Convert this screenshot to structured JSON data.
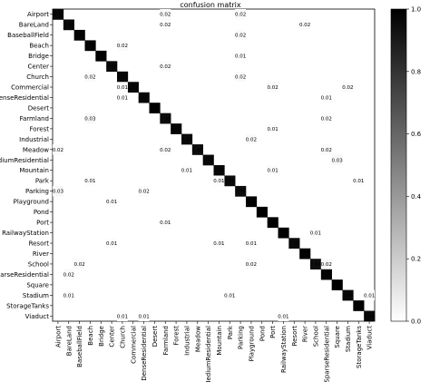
{
  "chart_data": {
    "type": "heatmap",
    "title": "confusion matrix",
    "xlabel": "",
    "ylabel": "",
    "labels": [
      "Airport",
      "BareLand",
      "BaseballField",
      "Beach",
      "Bridge",
      "Center",
      "Church",
      "Commercial",
      "DenseResidential",
      "Desert",
      "Farmland",
      "Forest",
      "Industrial",
      "Meadow",
      "MediumResidential",
      "Mountain",
      "Park",
      "Parking",
      "Playground",
      "Pond",
      "Port",
      "RailwayStation",
      "Resort",
      "River",
      "School",
      "SparseResidential",
      "Square",
      "Stadium",
      "StorageTanks",
      "Viaduct"
    ],
    "diagonal": [
      0.97,
      0.97,
      0.98,
      0.98,
      0.99,
      0.96,
      0.97,
      0.97,
      0.97,
      1.0,
      0.95,
      0.98,
      0.96,
      0.95,
      0.97,
      0.97,
      0.96,
      0.95,
      0.99,
      1.0,
      0.99,
      0.99,
      0.96,
      1.0,
      0.94,
      0.98,
      1.0,
      0.96,
      1.0,
      0.96
    ],
    "off_diagonal": [
      {
        "row": 0,
        "col": 10,
        "value": 0.02
      },
      {
        "row": 0,
        "col": 17,
        "value": 0.02
      },
      {
        "row": 1,
        "col": 10,
        "value": 0.02
      },
      {
        "row": 1,
        "col": 23,
        "value": 0.02
      },
      {
        "row": 2,
        "col": 17,
        "value": 0.02
      },
      {
        "row": 3,
        "col": 6,
        "value": 0.02
      },
      {
        "row": 4,
        "col": 17,
        "value": 0.01
      },
      {
        "row": 5,
        "col": 10,
        "value": 0.02
      },
      {
        "row": 6,
        "col": 3,
        "value": 0.02
      },
      {
        "row": 6,
        "col": 17,
        "value": 0.02
      },
      {
        "row": 7,
        "col": 6,
        "value": 0.01
      },
      {
        "row": 7,
        "col": 20,
        "value": 0.02
      },
      {
        "row": 7,
        "col": 27,
        "value": 0.02
      },
      {
        "row": 8,
        "col": 6,
        "value": 0.01
      },
      {
        "row": 8,
        "col": 25,
        "value": 0.01
      },
      {
        "row": 10,
        "col": 3,
        "value": 0.03
      },
      {
        "row": 10,
        "col": 25,
        "value": 0.02
      },
      {
        "row": 11,
        "col": 20,
        "value": 0.01
      },
      {
        "row": 12,
        "col": 18,
        "value": 0.02
      },
      {
        "row": 13,
        "col": 0,
        "value": 0.02
      },
      {
        "row": 13,
        "col": 10,
        "value": 0.02
      },
      {
        "row": 13,
        "col": 25,
        "value": 0.02
      },
      {
        "row": 14,
        "col": 26,
        "value": 0.03
      },
      {
        "row": 15,
        "col": 12,
        "value": 0.01
      },
      {
        "row": 15,
        "col": 20,
        "value": 0.01
      },
      {
        "row": 16,
        "col": 3,
        "value": 0.01
      },
      {
        "row": 16,
        "col": 15,
        "value": 0.01
      },
      {
        "row": 16,
        "col": 28,
        "value": 0.01
      },
      {
        "row": 17,
        "col": 0,
        "value": 0.03
      },
      {
        "row": 17,
        "col": 8,
        "value": 0.02
      },
      {
        "row": 18,
        "col": 5,
        "value": 0.01
      },
      {
        "row": 20,
        "col": 10,
        "value": 0.01
      },
      {
        "row": 21,
        "col": 24,
        "value": 0.01
      },
      {
        "row": 22,
        "col": 5,
        "value": 0.01
      },
      {
        "row": 22,
        "col": 15,
        "value": 0.01
      },
      {
        "row": 22,
        "col": 18,
        "value": 0.01
      },
      {
        "row": 24,
        "col": 2,
        "value": 0.02
      },
      {
        "row": 24,
        "col": 18,
        "value": 0.02
      },
      {
        "row": 24,
        "col": 25,
        "value": 0.02
      },
      {
        "row": 25,
        "col": 1,
        "value": 0.02
      },
      {
        "row": 27,
        "col": 1,
        "value": 0.01
      },
      {
        "row": 27,
        "col": 16,
        "value": 0.01
      },
      {
        "row": 27,
        "col": 29,
        "value": 0.01
      },
      {
        "row": 29,
        "col": 6,
        "value": 0.01
      },
      {
        "row": 29,
        "col": 8,
        "value": 0.01
      },
      {
        "row": 29,
        "col": 21,
        "value": 0.01
      }
    ],
    "colorbar": {
      "range": [
        0,
        1.0
      ],
      "ticks": [
        "0.0",
        "0.2",
        "0.4",
        "0.6",
        "0.8",
        "1.0"
      ],
      "colormap": "greys"
    }
  }
}
